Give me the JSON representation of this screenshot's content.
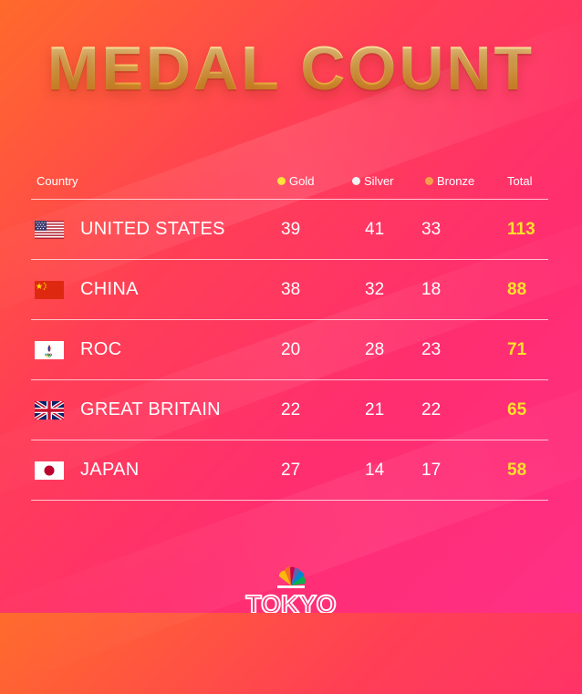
{
  "title": "MEDAL COUNT",
  "headers": {
    "country": "Country",
    "gold": "Gold",
    "silver": "Silver",
    "bronze": "Bronze",
    "total": "Total"
  },
  "colors": {
    "gold_dot": "#ffe33a",
    "silver_dot": "#f2f2f2",
    "bronze_dot": "#f4a04a",
    "total_text": "#ffe02a"
  },
  "rows": [
    {
      "country": "UNITED STATES",
      "flag": "us-flag-icon",
      "gold": "39",
      "silver": "41",
      "bronze": "33",
      "total": "113"
    },
    {
      "country": "CHINA",
      "flag": "china-flag-icon",
      "gold": "38",
      "silver": "32",
      "bronze": "18",
      "total": "88"
    },
    {
      "country": "ROC",
      "flag": "roc-flag-icon",
      "gold": "20",
      "silver": "28",
      "bronze": "23",
      "total": "71"
    },
    {
      "country": "GREAT BRITAIN",
      "flag": "uk-flag-icon",
      "gold": "22",
      "silver": "21",
      "bronze": "22",
      "total": "65"
    },
    {
      "country": "JAPAN",
      "flag": "japan-flag-icon",
      "gold": "27",
      "silver": "14",
      "bronze": "17",
      "total": "58"
    }
  ],
  "footer": {
    "logo_text": "TOKYO",
    "logo": "nbc-peacock-icon"
  }
}
